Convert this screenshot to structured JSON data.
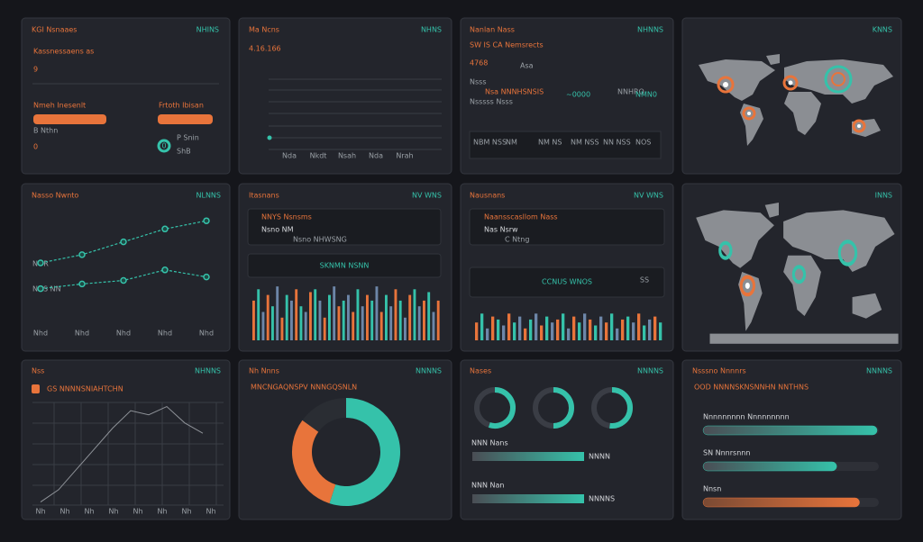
{
  "panels": [
    {
      "title": "KGI Nsnaaes",
      "tag": "NHINS",
      "label": "Kassnessaens as",
      "value": "9",
      "bar_labels": [
        "Nmeh Inesenlt",
        "Frtoth Ibisan"
      ],
      "note": "B  Nthn",
      "count": "0",
      "ring_label": "0",
      "ring_lines": [
        "P Snin",
        "ShB"
      ]
    },
    {
      "title": "Ma Ncns",
      "tag": "NHNS",
      "value": "4.16.166",
      "x_labels": [
        "Nda",
        "Nkdt",
        "Nsah",
        "Nda",
        "Nrah"
      ]
    },
    {
      "title": "Nanlan Nass",
      "tag": "NHNNS",
      "label": "SW IS CA Nemsrects",
      "value": "4768",
      "unit": "Asa",
      "lines": [
        "Nsss",
        "Nsa NNNHSNSIS",
        "Nsssss Nsss"
      ],
      "metric": "~0000",
      "metric_label": "NNHRO",
      "metric2": "NMN0",
      "cells": [
        "NBM NSS",
        "NM",
        "NM NS",
        "NM NSS",
        "NN NSS",
        "NOS"
      ]
    },
    {
      "tag": "KNNS"
    },
    {
      "title": "Nasso Nwnto",
      "tag": "NLNNS",
      "side_labels": [
        "NOR",
        "NNS NN"
      ],
      "x_labels": [
        "Nhd",
        "Nhd",
        "Nhd",
        "Nhd",
        "Nhd"
      ],
      "ylim": [
        0,
        10
      ],
      "series": [
        {
          "color": "#35c2aa",
          "values": [
            6,
            6.7,
            7.8,
            8.9,
            9.6
          ]
        },
        {
          "color": "#35c2aa",
          "values": [
            3.8,
            4.2,
            4.5,
            5.4,
            4.8
          ]
        }
      ]
    },
    {
      "title": "Itasnans",
      "tag": "NV WNS",
      "box_lines": [
        "NNYS Nsnsms",
        "Nsno  NM",
        "Nsno NHWSNG"
      ],
      "banner": "SKNMN NSNN",
      "ylim": [
        0,
        10
      ],
      "colors": [
        "#e8743b",
        "#35c2aa",
        "#6d86a8"
      ],
      "values": [
        7,
        9,
        5,
        8,
        6,
        9.5,
        4,
        8,
        7,
        9,
        6,
        5,
        8.5,
        9,
        7,
        4,
        8,
        9.5,
        6,
        7,
        8,
        5,
        9,
        6,
        8,
        7,
        9.5,
        5,
        8,
        6,
        9,
        7,
        4,
        8,
        9,
        6,
        7,
        8.5,
        5,
        7
      ]
    },
    {
      "title": "Nausnans",
      "tag": "NV WNS",
      "box_lines": [
        "Naansscasllom Nass",
        "Nas Nsrw",
        "C  Ntng"
      ],
      "banner": "CCNUS WNOS",
      "banner_tag": "SS",
      "ylim": [
        0,
        10
      ],
      "colors": [
        "#e8743b",
        "#35c2aa",
        "#6d86a8"
      ],
      "values": [
        6,
        9,
        4,
        8,
        7,
        5,
        9,
        6,
        8,
        4,
        7,
        9,
        5,
        8,
        6,
        7,
        9,
        4,
        8,
        6,
        9,
        7,
        5,
        8,
        6,
        9,
        4,
        7,
        8,
        6,
        9,
        5,
        7,
        8,
        6
      ]
    },
    {
      "tag": "INNS"
    },
    {
      "title": "Nss",
      "tag": "NHNNS",
      "subtitle": "GS NNNNSNIAHTCHN",
      "ylim": [
        0,
        10
      ],
      "color": "#8e9298",
      "values": [
        0.3,
        1.5,
        3.5,
        5.5,
        7.5,
        9.2,
        8.8,
        9.6,
        8,
        7
      ],
      "x_labels": [
        "Nh",
        "Nh",
        "Nh",
        "Nh",
        "Nh",
        "Nh",
        "Nh",
        "Nh"
      ]
    },
    {
      "title": "Nh Nnns",
      "tag": "NNNNS",
      "subtitle": "MNCNGAQNSPV NNNGQSNLN",
      "values": [
        55,
        30,
        15
      ],
      "colors": [
        "#35c2aa",
        "#e8743b",
        "#2a2d33"
      ]
    },
    {
      "title": "Nases",
      "tag": "NNNNS",
      "rings": [
        55,
        50,
        52
      ],
      "xlim": [
        0,
        100
      ],
      "rows": [
        {
          "label": "NNN Nans",
          "value_label": "NNNN",
          "value": 100
        },
        {
          "label": "NNN Nan",
          "value_label": "NNNNS",
          "value": 100
        }
      ]
    },
    {
      "title": "Nsssno Nnnnrs",
      "tag": "NNNNS",
      "subtitle": "OOD NNNNSKNSNNHN NNTHNS",
      "xlim": [
        0,
        100
      ],
      "rows": [
        {
          "label": "Nnnnnnnnn Nnnnnnnnn",
          "value": 99,
          "color": "#35c2aa"
        },
        {
          "label": "SN Nnnrsnnn",
          "value": 76,
          "color": "#35c2aa"
        },
        {
          "label": "Nnsn",
          "value": 89,
          "color": "#e8743b"
        }
      ]
    }
  ]
}
